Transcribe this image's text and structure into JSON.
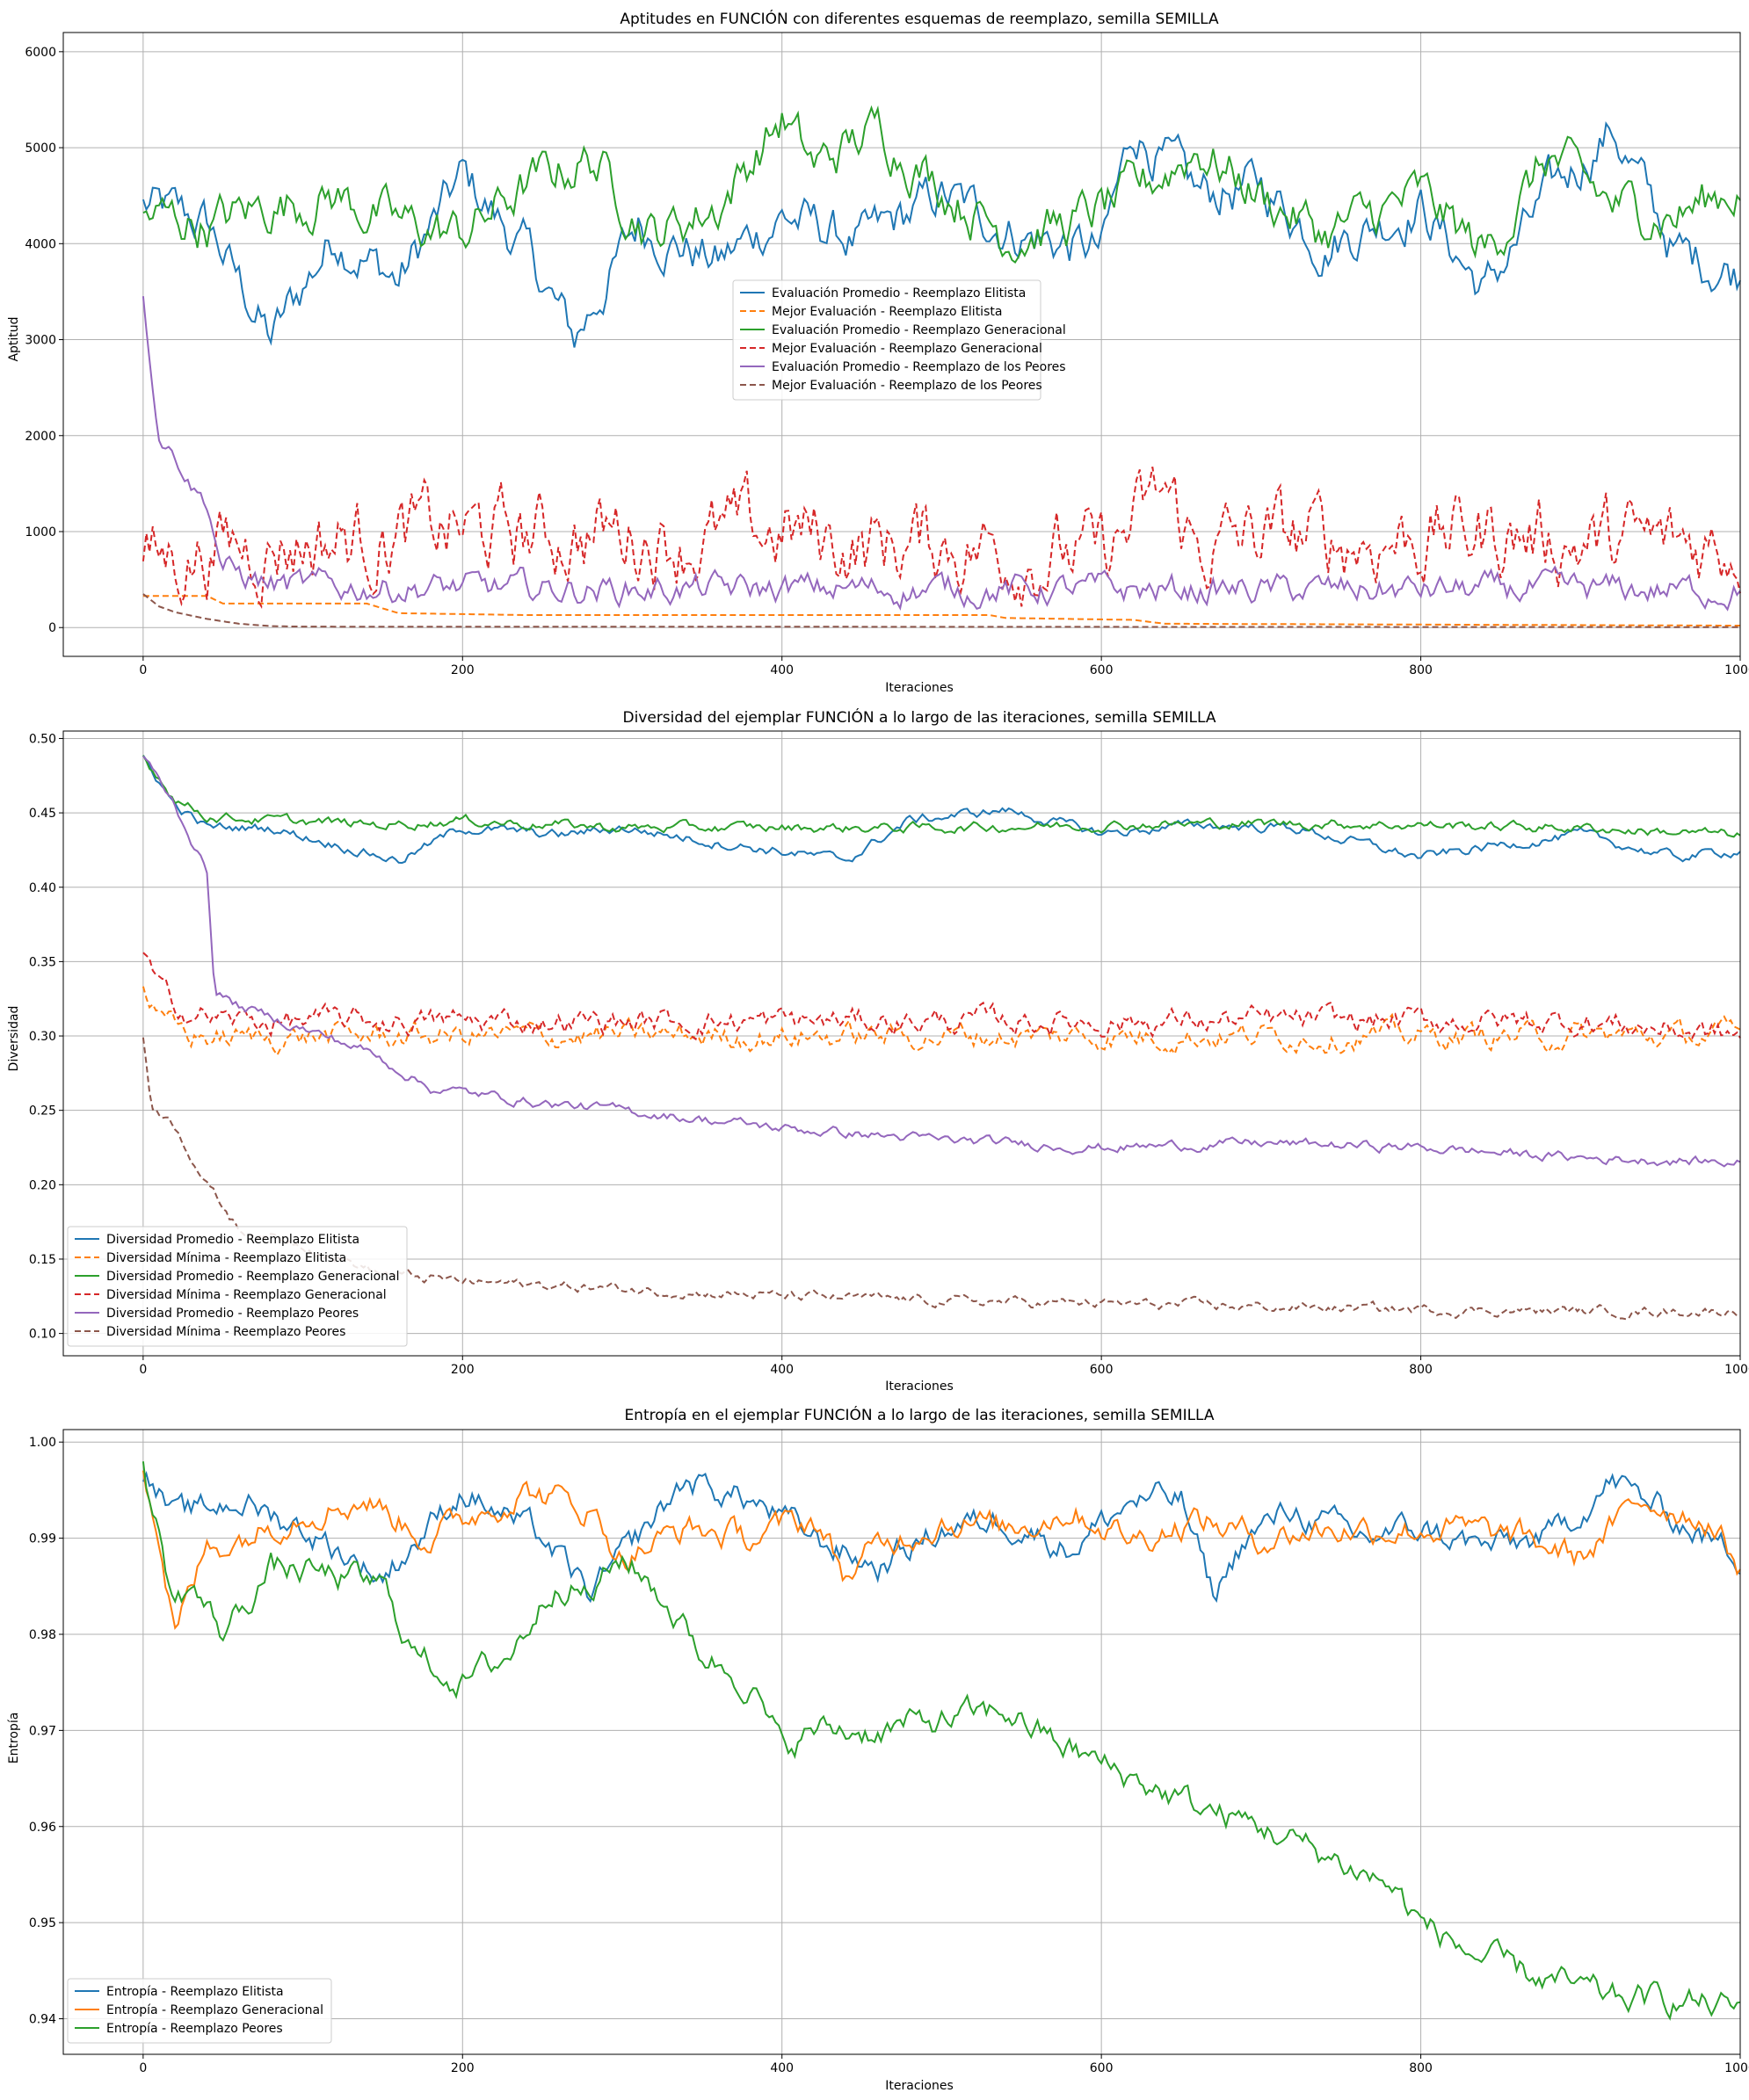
{
  "chart_data": [
    {
      "type": "line",
      "title": "Aptitudes en FUNCIÓN con diferentes esquemas de reemplazo, semilla SEMILLA",
      "xlabel": "Iteraciones",
      "ylabel": "Aptitud",
      "xlim": [
        -50,
        1000
      ],
      "ylim": [
        -300,
        6200
      ],
      "xticks": [
        "0",
        "200",
        "400",
        "600",
        "800",
        "1000"
      ],
      "yticks": [
        "0",
        "1000",
        "2000",
        "3000",
        "4000",
        "5000",
        "6000"
      ],
      "grid": true,
      "legend_position": "center",
      "series": [
        {
          "name": "Evaluación Promedio - Reemplazo Elitista",
          "color": "#1f77b4",
          "dash": "solid",
          "x": [
            0,
            40,
            80,
            120,
            160,
            200,
            240,
            270,
            310,
            360,
            400,
            450,
            500,
            550,
            600,
            620,
            660,
            700,
            740,
            800,
            840,
            880,
            920,
            960,
            1000
          ],
          "values": [
            4400,
            4200,
            3000,
            4100,
            3600,
            4700,
            3900,
            3000,
            4200,
            3800,
            4300,
            4000,
            4500,
            4100,
            3900,
            5200,
            4500,
            4600,
            4000,
            4400,
            3500,
            4500,
            5200,
            3900,
            3700
          ]
        },
        {
          "name": "Mejor Evaluación - Reemplazo Elitista",
          "color": "#ff7f0e",
          "dash": "dashed",
          "x": [
            0,
            40,
            50,
            140,
            160,
            240,
            530,
            540,
            620,
            640,
            1000
          ],
          "values": [
            330,
            330,
            250,
            250,
            150,
            130,
            130,
            100,
            80,
            40,
            20
          ]
        },
        {
          "name": "Evaluación Promedio - Reemplazo Generacional",
          "color": "#2ca02c",
          "dash": "solid",
          "x": [
            0,
            40,
            80,
            120,
            160,
            200,
            240,
            280,
            320,
            360,
            400,
            420,
            460,
            500,
            540,
            580,
            620,
            660,
            700,
            740,
            800,
            840,
            880,
            920,
            960,
            1000
          ],
          "values": [
            4300,
            4200,
            4400,
            4500,
            4200,
            4100,
            4600,
            4900,
            4100,
            4400,
            5300,
            4800,
            5200,
            4600,
            4100,
            4200,
            4500,
            5000,
            4500,
            4100,
            4500,
            3900,
            4900,
            4400,
            4300,
            4600
          ]
        },
        {
          "name": "Mejor Evaluación - Reemplazo Generacional",
          "color": "#d62728",
          "dash": "dashed",
          "x": [
            0,
            50,
            100,
            150,
            200,
            250,
            300,
            350,
            400,
            450,
            500,
            550,
            600,
            640,
            660,
            700,
            750,
            800,
            850,
            900,
            950,
            1000
          ],
          "values": [
            650,
            850,
            900,
            950,
            1000,
            950,
            1000,
            900,
            1000,
            850,
            900,
            800,
            700,
            1400,
            800,
            950,
            900,
            950,
            1000,
            900,
            850,
            900
          ]
        },
        {
          "name": "Evaluación Promedio - Reemplazo de los Peores",
          "color": "#9467bd",
          "dash": "solid",
          "x": [
            0,
            5,
            10,
            20,
            30,
            40,
            50,
            80,
            100,
            150,
            200,
            250,
            300,
            400,
            500,
            600,
            700,
            800,
            900,
            1000
          ],
          "values": [
            3400,
            2700,
            2000,
            1800,
            1500,
            1300,
            600,
            450,
            420,
            420,
            410,
            400,
            400,
            400,
            400,
            390,
            390,
            390,
            390,
            390
          ]
        },
        {
          "name": "Mejor Evaluación - Reemplazo de los Peores",
          "color": "#8c564b",
          "dash": "dashed",
          "x": [
            0,
            10,
            20,
            40,
            60,
            80,
            100,
            1000
          ],
          "values": [
            350,
            220,
            160,
            90,
            40,
            15,
            10,
            5
          ]
        }
      ]
    },
    {
      "type": "line",
      "title": "Diversidad del ejemplar FUNCIÓN a lo largo de las iteraciones, semilla SEMILLA",
      "xlabel": "Iteraciones",
      "ylabel": "Diversidad",
      "xlim": [
        -50,
        1000
      ],
      "ylim": [
        0.085,
        0.505
      ],
      "xticks": [
        "0",
        "200",
        "400",
        "600",
        "800",
        "1000"
      ],
      "yticks": [
        "0.10",
        "0.15",
        "0.20",
        "0.25",
        "0.30",
        "0.35",
        "0.40",
        "0.45",
        "0.50"
      ],
      "grid": true,
      "legend_position": "bottom-left",
      "series": [
        {
          "name": "Diversidad Promedio - Reemplazo Elitista",
          "color": "#1f77b4",
          "dash": "solid",
          "x": [
            0,
            20,
            40,
            80,
            160,
            200,
            260,
            300,
            360,
            440,
            480,
            540,
            600,
            660,
            720,
            800,
            860,
            900,
            960,
            1000
          ],
          "values": [
            0.488,
            0.455,
            0.44,
            0.44,
            0.418,
            0.44,
            0.435,
            0.44,
            0.43,
            0.418,
            0.445,
            0.452,
            0.436,
            0.442,
            0.44,
            0.42,
            0.43,
            0.435,
            0.42,
            0.425
          ]
        },
        {
          "name": "Diversidad Mínima - Reemplazo Elitista",
          "color": "#ff7f0e",
          "dash": "dashed",
          "x": [
            0,
            10,
            30,
            60,
            100,
            200,
            300,
            400,
            500,
            600,
            700,
            800,
            900,
            1000
          ],
          "values": [
            0.335,
            0.31,
            0.3,
            0.298,
            0.3,
            0.3,
            0.3,
            0.3,
            0.3,
            0.3,
            0.3,
            0.3,
            0.3,
            0.3
          ]
        },
        {
          "name": "Diversidad Promedio - Reemplazo Generacional",
          "color": "#2ca02c",
          "dash": "solid",
          "x": [
            0,
            20,
            40,
            80,
            150,
            200,
            300,
            400,
            500,
            600,
            700,
            800,
            900,
            1000
          ],
          "values": [
            0.488,
            0.46,
            0.448,
            0.445,
            0.442,
            0.445,
            0.44,
            0.44,
            0.44,
            0.442,
            0.443,
            0.442,
            0.44,
            0.435
          ]
        },
        {
          "name": "Diversidad Mínima - Reemplazo Generacional",
          "color": "#d62728",
          "dash": "dashed",
          "x": [
            0,
            10,
            30,
            60,
            100,
            200,
            300,
            400,
            500,
            600,
            700,
            800,
            900,
            1000
          ],
          "values": [
            0.355,
            0.33,
            0.315,
            0.31,
            0.31,
            0.31,
            0.31,
            0.31,
            0.31,
            0.31,
            0.31,
            0.31,
            0.31,
            0.3
          ]
        },
        {
          "name": "Diversidad Promedio - Reemplazo Peores",
          "color": "#9467bd",
          "dash": "solid",
          "x": [
            0,
            20,
            40,
            45,
            60,
            100,
            140,
            180,
            250,
            300,
            400,
            500,
            600,
            700,
            800,
            900,
            1000
          ],
          "values": [
            0.488,
            0.455,
            0.41,
            0.33,
            0.32,
            0.305,
            0.29,
            0.265,
            0.255,
            0.25,
            0.238,
            0.23,
            0.225,
            0.228,
            0.225,
            0.218,
            0.215
          ]
        },
        {
          "name": "Diversidad Mínima - Reemplazo Peores",
          "color": "#8c564b",
          "dash": "dashed",
          "x": [
            0,
            5,
            20,
            40,
            60,
            100,
            150,
            200,
            300,
            400,
            500,
            600,
            700,
            800,
            900,
            1000
          ],
          "values": [
            0.3,
            0.255,
            0.24,
            0.2,
            0.17,
            0.16,
            0.14,
            0.135,
            0.13,
            0.125,
            0.122,
            0.12,
            0.118,
            0.116,
            0.115,
            0.115
          ]
        }
      ]
    },
    {
      "type": "line",
      "title": "Entropía en el ejemplar FUNCIÓN a lo largo de las iteraciones, semilla SEMILLA",
      "xlabel": "Iteraciones",
      "ylabel": "Entropía",
      "xlim": [
        -50,
        1000
      ],
      "ylim": [
        0.9363,
        1.0013
      ],
      "xticks": [
        "0",
        "200",
        "400",
        "600",
        "800",
        "1000"
      ],
      "yticks": [
        "0.94",
        "0.95",
        "0.96",
        "0.97",
        "0.98",
        "0.99",
        "1.00"
      ],
      "grid": true,
      "legend_position": "bottom-left",
      "series": [
        {
          "name": "Entropía - Reemplazo Elitista",
          "color": "#1f77b4",
          "dash": "solid",
          "x": [
            0,
            20,
            60,
            100,
            150,
            200,
            250,
            280,
            300,
            340,
            380,
            420,
            460,
            500,
            540,
            580,
            620,
            650,
            670,
            690,
            720,
            760,
            800,
            840,
            880,
            920,
            960,
            1000
          ],
          "values": [
            0.997,
            0.992,
            0.994,
            0.991,
            0.986,
            0.995,
            0.99,
            0.984,
            0.988,
            0.996,
            0.994,
            0.99,
            0.987,
            0.991,
            0.992,
            0.989,
            0.994,
            0.994,
            0.984,
            0.99,
            0.993,
            0.99,
            0.991,
            0.989,
            0.99,
            0.996,
            0.992,
            0.988
          ]
        },
        {
          "name": "Entropía - Reemplazo Generacional",
          "color": "#ff7f0e",
          "dash": "solid",
          "x": [
            0,
            10,
            20,
            40,
            60,
            100,
            140,
            180,
            200,
            240,
            280,
            300,
            340,
            380,
            420,
            440,
            460,
            500,
            540,
            580,
            620,
            660,
            700,
            740,
            780,
            820,
            860,
            900,
            940,
            980,
            1000
          ],
          "values": [
            0.998,
            0.99,
            0.98,
            0.989,
            0.99,
            0.993,
            0.994,
            0.99,
            0.992,
            0.995,
            0.993,
            0.988,
            0.991,
            0.99,
            0.992,
            0.986,
            0.989,
            0.992,
            0.991,
            0.993,
            0.99,
            0.992,
            0.99,
            0.991,
            0.991,
            0.991,
            0.99,
            0.988,
            0.994,
            0.992,
            0.987
          ]
        },
        {
          "name": "Entropía - Reemplazo Peores",
          "color": "#2ca02c",
          "dash": "solid",
          "x": [
            0,
            10,
            20,
            30,
            50,
            80,
            120,
            150,
            170,
            200,
            230,
            260,
            280,
            300,
            320,
            350,
            380,
            400,
            420,
            460,
            500,
            540,
            560,
            580,
            620,
            660,
            700,
            740,
            780,
            800,
            840,
            880,
            920,
            960,
            1000
          ],
          "values": [
            0.997,
            0.99,
            0.983,
            0.985,
            0.98,
            0.987,
            0.986,
            0.985,
            0.978,
            0.975,
            0.978,
            0.986,
            0.984,
            0.988,
            0.985,
            0.978,
            0.975,
            0.968,
            0.97,
            0.97,
            0.971,
            0.972,
            0.97,
            0.968,
            0.965,
            0.962,
            0.96,
            0.957,
            0.954,
            0.95,
            0.946,
            0.944,
            0.942,
            0.942,
            0.941
          ]
        }
      ]
    }
  ]
}
